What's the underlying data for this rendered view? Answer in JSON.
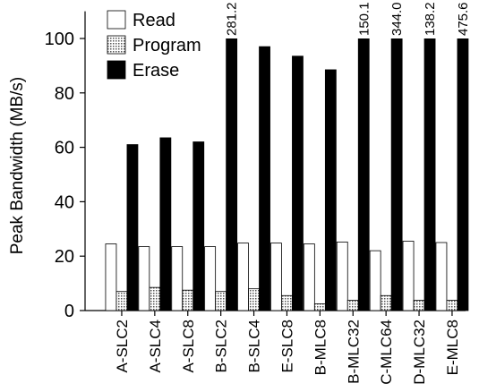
{
  "chart_data": {
    "type": "bar",
    "y_label": "Peak Bandwidth (MB/s)",
    "categories": [
      "A-SLC2",
      "A-SLC4",
      "A-SLC8",
      "B-SLC2",
      "B-SLC4",
      "E-SLC8",
      "B-MLC8",
      "B-MLC32",
      "C-MLC64",
      "D-MLC32",
      "E-MLC8"
    ],
    "series": [
      {
        "name": "Read",
        "color": "#ffffff",
        "values": [
          24.5,
          23.5,
          23.5,
          23.5,
          24.8,
          24.8,
          24.5,
          25.2,
          22,
          25.5,
          25
        ]
      },
      {
        "name": "Program",
        "color": "#888888",
        "values": [
          7,
          8.5,
          7.5,
          7,
          8,
          5.5,
          2.5,
          3.8,
          5.5,
          3.8,
          3.8
        ]
      },
      {
        "name": "Erase",
        "color": "#000000",
        "values": [
          61,
          63.5,
          62,
          281.2,
          97,
          93.5,
          88.5,
          150.1,
          344,
          138.2,
          475.6
        ],
        "value_labels": [
          null,
          null,
          null,
          "281.2",
          null,
          null,
          null,
          "150.1",
          "344.0",
          "138.2",
          "475.6"
        ]
      }
    ],
    "ylim": [
      0,
      110
    ],
    "yticks": [
      0,
      20,
      40,
      60,
      80,
      100
    ],
    "legend": "upper-left"
  }
}
